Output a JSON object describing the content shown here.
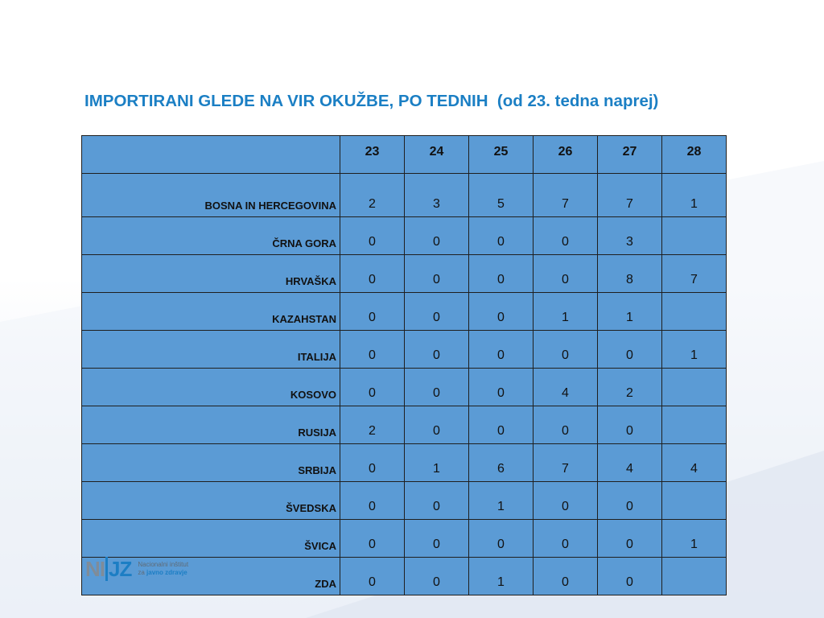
{
  "title": "IMPORTIRANI GLEDE NA VIR OKUŽBE, PO TEDNIH  (od 23. tedna naprej)",
  "table": {
    "weeks": [
      "23",
      "24",
      "25",
      "26",
      "27",
      "28"
    ],
    "rows": [
      {
        "country": "BOSNA IN HERCEGOVINA",
        "values": [
          "2",
          "3",
          "5",
          "7",
          "7",
          "1"
        ]
      },
      {
        "country": "ČRNA GORA",
        "values": [
          "0",
          "0",
          "0",
          "0",
          "3",
          ""
        ]
      },
      {
        "country": "HRVAŠKA",
        "values": [
          "0",
          "0",
          "0",
          "0",
          "8",
          "7"
        ]
      },
      {
        "country": "KAZAHSTAN",
        "values": [
          "0",
          "0",
          "0",
          "1",
          "1",
          ""
        ]
      },
      {
        "country": "ITALIJA",
        "values": [
          "0",
          "0",
          "0",
          "0",
          "0",
          "1"
        ]
      },
      {
        "country": "KOSOVO",
        "values": [
          "0",
          "0",
          "0",
          "4",
          "2",
          ""
        ]
      },
      {
        "country": "RUSIJA",
        "values": [
          "2",
          "0",
          "0",
          "0",
          "0",
          ""
        ]
      },
      {
        "country": "SRBIJA",
        "values": [
          "0",
          "1",
          "6",
          "7",
          "4",
          "4"
        ]
      },
      {
        "country": "ŠVEDSKA",
        "values": [
          "0",
          "0",
          "1",
          "0",
          "0",
          ""
        ]
      },
      {
        "country": "ŠVICA",
        "values": [
          "0",
          "0",
          "0",
          "0",
          "0",
          "1"
        ]
      },
      {
        "country": "ZDA",
        "values": [
          "0",
          "0",
          "1",
          "0",
          "0",
          ""
        ]
      }
    ]
  },
  "logo": {
    "mark_left": "NI",
    "mark_right": "JZ",
    "line1": "Nacionalni inštitut",
    "line2_prefix": "za ",
    "line2_bold": "javno zdravje"
  },
  "colors": {
    "title": "#1b7fc4",
    "table_fill": "#5b9bd5",
    "logo_blue": "#1c7ec4",
    "logo_gray": "#7f8c99"
  }
}
